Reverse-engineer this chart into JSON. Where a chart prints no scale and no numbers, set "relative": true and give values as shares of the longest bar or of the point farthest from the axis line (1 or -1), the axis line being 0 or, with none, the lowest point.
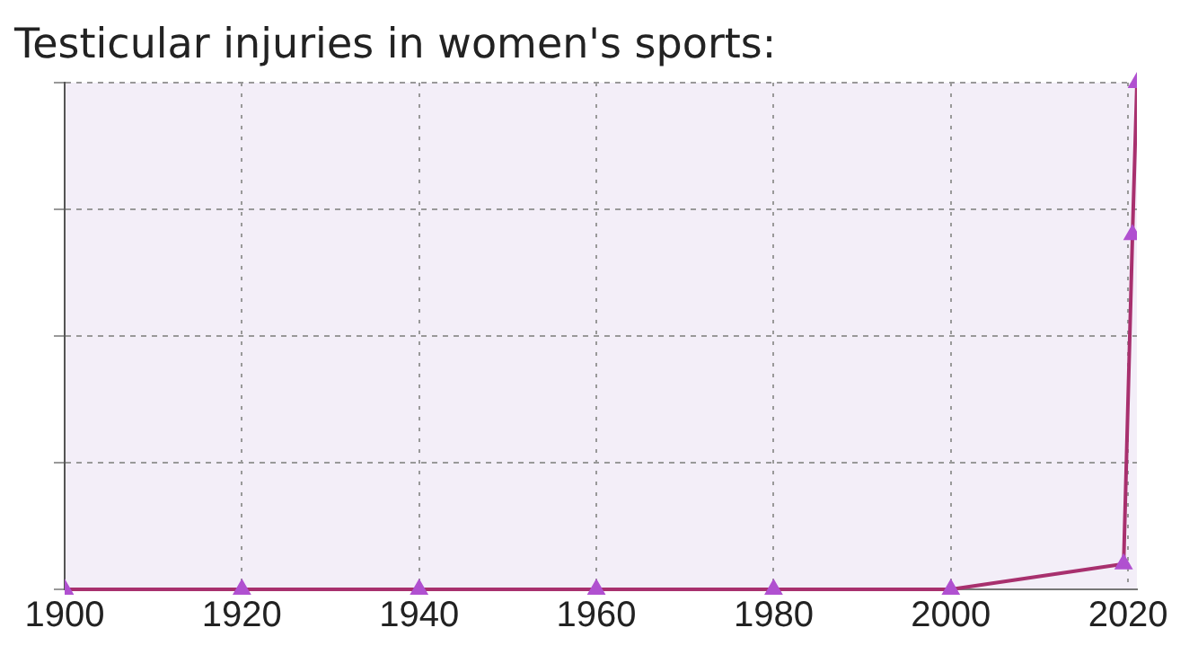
{
  "chart_data": {
    "type": "line",
    "title": "Testicular injuries in women's sports:",
    "relative": true,
    "x": [
      1900,
      1920,
      1940,
      1960,
      1980,
      2000,
      2019.5,
      2020.5,
      2021
    ],
    "series": [
      {
        "color": "#a8306e",
        "values": [
          0,
          0,
          0,
          0,
          0,
          0,
          0.05,
          0.7,
          1
        ]
      }
    ],
    "xlim": [
      1900,
      2021
    ],
    "xticks": [
      1900,
      1920,
      1940,
      1960,
      1980,
      2000,
      2020
    ],
    "grid": true,
    "marker": "triangle",
    "line_style": "solid",
    "legend": false
  }
}
